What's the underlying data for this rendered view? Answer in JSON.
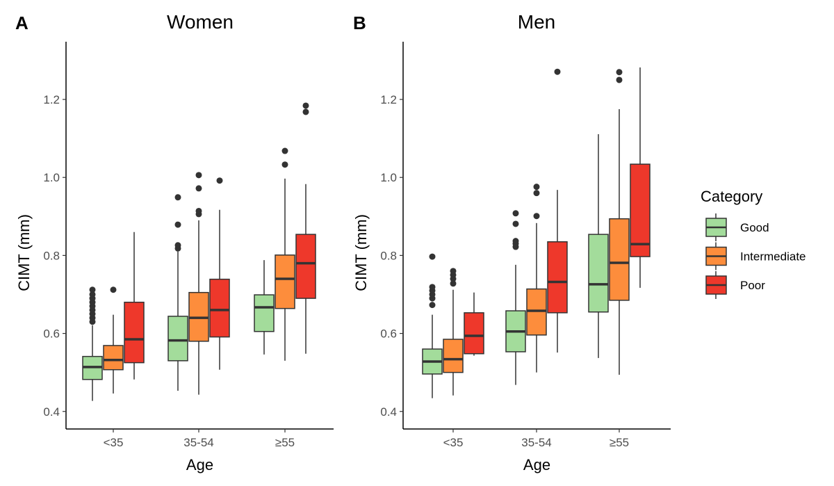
{
  "chart_data": [
    {
      "type": "box",
      "panel_label": "A",
      "title": "Women",
      "xlabel": "Age",
      "ylabel": "CIMT (mm)",
      "ylim": [
        0.355,
        1.348
      ],
      "yticks": [
        "0.4",
        "0.6",
        "0.8",
        "1.0",
        "1.2"
      ],
      "categories": [
        "<35",
        "35-54",
        "≥55"
      ],
      "groups": [
        {
          "category": "<35",
          "boxes": [
            {
              "series": "Good",
              "low": 0.427,
              "q1": 0.482,
              "median": 0.514,
              "q3": 0.541,
              "high": 0.621,
              "outliers": [
                0.63,
                0.64,
                0.65,
                0.66,
                0.67,
                0.68,
                0.69,
                0.7,
                0.712
              ]
            },
            {
              "series": "Intermediate",
              "low": 0.446,
              "q1": 0.507,
              "median": 0.532,
              "q3": 0.569,
              "high": 0.648,
              "outliers": [
                0.712
              ]
            },
            {
              "series": "Poor",
              "low": 0.482,
              "q1": 0.525,
              "median": 0.585,
              "q3": 0.68,
              "high": 0.86,
              "outliers": []
            }
          ]
        },
        {
          "category": "35-54",
          "boxes": [
            {
              "series": "Good",
              "low": 0.453,
              "q1": 0.53,
              "median": 0.582,
              "q3": 0.644,
              "high": 0.81,
              "outliers": [
                0.818,
                0.826,
                0.879,
                0.949
              ]
            },
            {
              "series": "Intermediate",
              "low": 0.443,
              "q1": 0.58,
              "median": 0.64,
              "q3": 0.705,
              "high": 0.89,
              "outliers": [
                0.906,
                0.914,
                0.972,
                1.006
              ]
            },
            {
              "series": "Poor",
              "low": 0.507,
              "q1": 0.591,
              "median": 0.66,
              "q3": 0.739,
              "high": 0.917,
              "outliers": [
                0.992
              ]
            }
          ]
        },
        {
          "category": "≥55",
          "boxes": [
            {
              "series": "Good",
              "low": 0.546,
              "q1": 0.605,
              "median": 0.667,
              "q3": 0.699,
              "high": 0.788,
              "outliers": []
            },
            {
              "series": "Intermediate",
              "low": 0.53,
              "q1": 0.664,
              "median": 0.74,
              "q3": 0.801,
              "high": 0.997,
              "outliers": [
                1.033,
                1.068
              ]
            },
            {
              "series": "Poor",
              "low": 0.548,
              "q1": 0.69,
              "median": 0.78,
              "q3": 0.854,
              "high": 0.983,
              "outliers": [
                1.168,
                1.184
              ]
            }
          ]
        }
      ]
    },
    {
      "type": "box",
      "panel_label": "B",
      "title": "Men",
      "xlabel": "Age",
      "ylabel": "CIMT (mm)",
      "ylim": [
        0.355,
        1.348
      ],
      "yticks": [
        "0.4",
        "0.6",
        "0.8",
        "1.0",
        "1.2"
      ],
      "categories": [
        "<35",
        "35-54",
        "≥55"
      ],
      "groups": [
        {
          "category": "<35",
          "boxes": [
            {
              "series": "Good",
              "low": 0.434,
              "q1": 0.496,
              "median": 0.528,
              "q3": 0.56,
              "high": 0.648,
              "outliers": [
                0.673,
                0.69,
                0.7,
                0.71,
                0.719,
                0.797
              ]
            },
            {
              "series": "Intermediate",
              "low": 0.441,
              "q1": 0.5,
              "median": 0.534,
              "q3": 0.585,
              "high": 0.712,
              "outliers": [
                0.728,
                0.74,
                0.75,
                0.76
              ]
            },
            {
              "series": "Poor",
              "low": 0.543,
              "q1": 0.548,
              "median": 0.594,
              "q3": 0.653,
              "high": 0.705,
              "outliers": []
            }
          ]
        },
        {
          "category": "35-54",
          "boxes": [
            {
              "series": "Good",
              "low": 0.468,
              "q1": 0.553,
              "median": 0.605,
              "q3": 0.658,
              "high": 0.776,
              "outliers": [
                0.822,
                0.83,
                0.837,
                0.881,
                0.908
              ]
            },
            {
              "series": "Intermediate",
              "low": 0.5,
              "q1": 0.596,
              "median": 0.658,
              "q3": 0.714,
              "high": 0.883,
              "outliers": [
                0.901,
                0.96,
                0.976
              ]
            },
            {
              "series": "Poor",
              "low": 0.551,
              "q1": 0.653,
              "median": 0.732,
              "q3": 0.835,
              "high": 0.968,
              "outliers": [
                1.271
              ]
            }
          ]
        },
        {
          "category": "≥55",
          "boxes": [
            {
              "series": "Good",
              "low": 0.537,
              "q1": 0.655,
              "median": 0.726,
              "q3": 0.854,
              "high": 1.111,
              "outliers": []
            },
            {
              "series": "Intermediate",
              "low": 0.494,
              "q1": 0.685,
              "median": 0.781,
              "q3": 0.894,
              "high": 1.175,
              "outliers": [
                1.25,
                1.27
              ]
            },
            {
              "series": "Poor",
              "low": 0.717,
              "q1": 0.797,
              "median": 0.829,
              "q3": 1.034,
              "high": 1.282,
              "outliers": []
            }
          ]
        }
      ]
    }
  ],
  "legend": {
    "title": "Category",
    "placement": "right",
    "items": [
      {
        "label": "Good",
        "color": "#A3DC9B"
      },
      {
        "label": "Intermediate",
        "color": "#FD8D3C"
      },
      {
        "label": "Poor",
        "color": "#EE382B"
      }
    ]
  }
}
